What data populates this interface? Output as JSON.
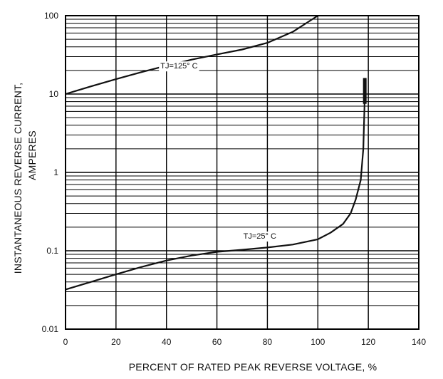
{
  "chart_data": {
    "type": "line",
    "title": "",
    "xlabel": "PERCENT OF RATED PEAK REVERSE VOLTAGE,  %",
    "ylabel_line1": "INSTANTANEOUS REVERSE CURRENT,",
    "ylabel_line2": "AMPERES",
    "xlim": [
      0,
      140
    ],
    "ylim": [
      0.01,
      100
    ],
    "yscale": "log",
    "grid": true,
    "x_tick_values": [
      0,
      20,
      40,
      60,
      80,
      100,
      120,
      140
    ],
    "x_tick_labels": [
      "0",
      "20",
      "40",
      "60",
      "80",
      "100",
      "120",
      "140"
    ],
    "y_tick_values": [
      0.01,
      0.1,
      1,
      10,
      100
    ],
    "y_tick_labels": [
      "0.01",
      "0.1",
      "1",
      "10",
      "100"
    ],
    "series": [
      {
        "label": "TJ=125° C",
        "points": [
          [
            0,
            10
          ],
          [
            10,
            12.5
          ],
          [
            20,
            15.5
          ],
          [
            30,
            19
          ],
          [
            40,
            23
          ],
          [
            50,
            27.5
          ],
          [
            60,
            32
          ],
          [
            70,
            37
          ],
          [
            80,
            45
          ],
          [
            90,
            62
          ],
          [
            100,
            100
          ]
        ]
      },
      {
        "label": "TJ=25° C",
        "points": [
          [
            0,
            0.032
          ],
          [
            10,
            0.04
          ],
          [
            20,
            0.05
          ],
          [
            30,
            0.062
          ],
          [
            40,
            0.075
          ],
          [
            50,
            0.087
          ],
          [
            60,
            0.097
          ],
          [
            70,
            0.103
          ],
          [
            80,
            0.11
          ],
          [
            90,
            0.12
          ],
          [
            100,
            0.14
          ],
          [
            105,
            0.17
          ],
          [
            110,
            0.22
          ],
          [
            113,
            0.3
          ],
          [
            115,
            0.45
          ],
          [
            117,
            0.8
          ],
          [
            118,
            2.0
          ],
          [
            118.5,
            7.0
          ],
          [
            118.6,
            16.0
          ]
        ]
      }
    ],
    "annotations": [
      "TJ=125° C",
      "TJ=25° C"
    ]
  }
}
